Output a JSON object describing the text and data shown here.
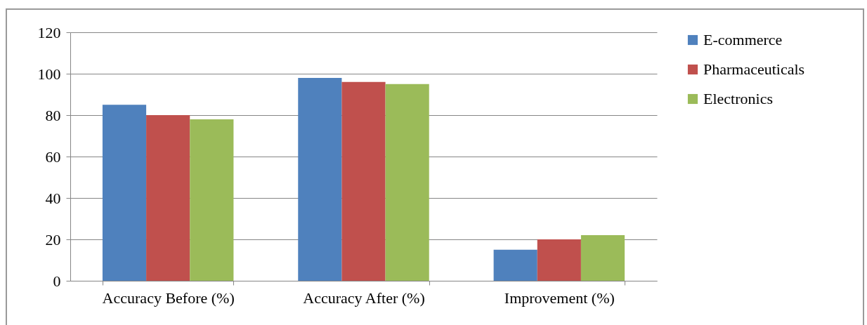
{
  "chart_data": {
    "type": "bar",
    "categories": [
      "Accuracy Before (%)",
      "Accuracy After (%)",
      "Improvement (%)"
    ],
    "series": [
      {
        "name": "E-commerce",
        "color": "#4f81bd",
        "values": [
          85,
          98,
          15
        ]
      },
      {
        "name": "Pharmaceuticals",
        "color": "#c0504d",
        "values": [
          80,
          96,
          20
        ]
      },
      {
        "name": "Electronics",
        "color": "#9bbb59",
        "values": [
          78,
          95,
          22
        ]
      }
    ],
    "ylim": [
      0,
      120
    ],
    "yticks": [
      0,
      20,
      40,
      60,
      80,
      100,
      120
    ],
    "grid": "y",
    "legend": "right"
  }
}
